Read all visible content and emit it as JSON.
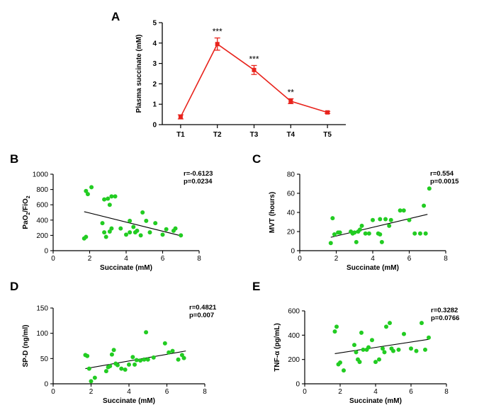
{
  "figure": {
    "background": "#ffffff"
  },
  "chart_data": [
    {
      "id": "A",
      "panel_label": "A",
      "type": "line",
      "color": "#e8231c",
      "categories": [
        "T1",
        "T2",
        "T3",
        "T4",
        "T5"
      ],
      "values": [
        0.38,
        3.95,
        2.68,
        1.15,
        0.6
      ],
      "errors": [
        0.1,
        0.3,
        0.22,
        0.12,
        0.05
      ],
      "significance": [
        "",
        "***",
        "***",
        "**",
        ""
      ],
      "ylabel": "Plasma succinate (mM)",
      "xlabel": "",
      "ylim": [
        0,
        5
      ],
      "yticks": [
        0,
        1,
        2,
        3,
        4,
        5
      ]
    },
    {
      "id": "B",
      "panel_label": "B",
      "type": "scatter",
      "color": "#22cc22",
      "xlabel": "Succinate (mM)",
      "ylabel": "PaO2/FiO2",
      "ylabel_main": "PaO",
      "ylabel_sub1": "2",
      "ylabel_mid": "/FiO",
      "ylabel_sub2": "2",
      "xlim": [
        0,
        8
      ],
      "ylim": [
        0,
        1000
      ],
      "xticks": [
        0,
        2,
        4,
        6,
        8
      ],
      "yticks": [
        0,
        200,
        400,
        600,
        800,
        1000
      ],
      "r_text": "r=-0.6123",
      "p_text": "p=0.0234",
      "regression": {
        "x": [
          1.7,
          7.0
        ],
        "y": [
          510,
          195
        ]
      },
      "points": [
        [
          1.7,
          160
        ],
        [
          1.8,
          180
        ],
        [
          1.8,
          780
        ],
        [
          1.9,
          740
        ],
        [
          2.1,
          830
        ],
        [
          2.7,
          360
        ],
        [
          2.8,
          240
        ],
        [
          2.8,
          670
        ],
        [
          2.9,
          180
        ],
        [
          3.0,
          680
        ],
        [
          3.1,
          250
        ],
        [
          3.2,
          290
        ],
        [
          3.1,
          600
        ],
        [
          3.2,
          710
        ],
        [
          3.4,
          710
        ],
        [
          3.7,
          290
        ],
        [
          4.0,
          210
        ],
        [
          4.2,
          390
        ],
        [
          4.4,
          310
        ],
        [
          4.2,
          240
        ],
        [
          4.5,
          240
        ],
        [
          4.6,
          260
        ],
        [
          4.8,
          200
        ],
        [
          4.9,
          500
        ],
        [
          5.1,
          390
        ],
        [
          5.3,
          240
        ],
        [
          5.6,
          360
        ],
        [
          6.0,
          210
        ],
        [
          6.2,
          280
        ],
        [
          6.6,
          260
        ],
        [
          6.7,
          290
        ],
        [
          7.0,
          200
        ]
      ]
    },
    {
      "id": "C",
      "panel_label": "C",
      "type": "scatter",
      "color": "#22cc22",
      "xlabel": "Succinate (mM)",
      "ylabel": "MVT (hours)",
      "xlim": [
        0,
        8
      ],
      "ylim": [
        0,
        80
      ],
      "xticks": [
        0,
        2,
        4,
        6,
        8
      ],
      "yticks": [
        0,
        20,
        40,
        60,
        80
      ],
      "r_text": "r=0.554",
      "p_text": "p=0.0015",
      "regression": {
        "x": [
          1.7,
          7.0
        ],
        "y": [
          14,
          38
        ]
      },
      "points": [
        [
          1.7,
          8
        ],
        [
          1.8,
          34
        ],
        [
          1.9,
          17
        ],
        [
          2.1,
          19
        ],
        [
          2.2,
          19
        ],
        [
          2.8,
          20
        ],
        [
          2.9,
          18
        ],
        [
          3.0,
          19
        ],
        [
          3.1,
          9
        ],
        [
          3.2,
          20
        ],
        [
          3.3,
          22
        ],
        [
          3.4,
          26
        ],
        [
          3.6,
          18
        ],
        [
          3.8,
          18
        ],
        [
          4.0,
          32
        ],
        [
          4.3,
          18
        ],
        [
          4.4,
          17
        ],
        [
          4.4,
          33
        ],
        [
          4.5,
          9
        ],
        [
          4.7,
          33
        ],
        [
          4.9,
          26
        ],
        [
          5.0,
          32
        ],
        [
          5.5,
          42
        ],
        [
          5.7,
          42
        ],
        [
          6.0,
          32
        ],
        [
          6.3,
          18
        ],
        [
          6.6,
          18
        ],
        [
          6.8,
          47
        ],
        [
          6.9,
          18
        ],
        [
          7.1,
          65
        ]
      ]
    },
    {
      "id": "D",
      "panel_label": "D",
      "type": "scatter",
      "color": "#22cc22",
      "xlabel": "Succinate (mM)",
      "ylabel": "SP-D (ng/ml)",
      "xlim": [
        0,
        8
      ],
      "ylim": [
        0,
        150
      ],
      "xticks": [
        0,
        2,
        4,
        6,
        8
      ],
      "yticks": [
        0,
        50,
        100,
        150
      ],
      "r_text": "r=0.4821",
      "p_text": "p=0.007",
      "regression": {
        "x": [
          1.7,
          7.0
        ],
        "y": [
          30,
          65
        ]
      },
      "points": [
        [
          1.7,
          57
        ],
        [
          1.8,
          55
        ],
        [
          1.9,
          30
        ],
        [
          2.0,
          5
        ],
        [
          2.2,
          12
        ],
        [
          2.8,
          25
        ],
        [
          2.9,
          33
        ],
        [
          3.0,
          35
        ],
        [
          3.1,
          58
        ],
        [
          3.2,
          67
        ],
        [
          3.3,
          40
        ],
        [
          3.4,
          37
        ],
        [
          3.6,
          30
        ],
        [
          3.8,
          28
        ],
        [
          4.0,
          38
        ],
        [
          4.2,
          53
        ],
        [
          4.3,
          38
        ],
        [
          4.4,
          47
        ],
        [
          4.6,
          46
        ],
        [
          4.8,
          48
        ],
        [
          4.9,
          102
        ],
        [
          5.0,
          48
        ],
        [
          5.3,
          52
        ],
        [
          5.9,
          80
        ],
        [
          6.1,
          62
        ],
        [
          6.3,
          65
        ],
        [
          6.6,
          48
        ],
        [
          6.8,
          57
        ],
        [
          6.9,
          51
        ]
      ]
    },
    {
      "id": "E",
      "panel_label": "E",
      "type": "scatter",
      "color": "#22cc22",
      "xlabel": "Succinate (mM)",
      "ylabel": "TNF-α (pg/mL)",
      "xlim": [
        0,
        8
      ],
      "ylim": [
        0,
        600
      ],
      "xticks": [
        0,
        2,
        4,
        6,
        8
      ],
      "yticks": [
        0,
        200,
        400,
        600
      ],
      "r_text": "r=0.3282",
      "p_text": "p=0.0766",
      "regression": {
        "x": [
          1.7,
          7.0
        ],
        "y": [
          248,
          366
        ]
      },
      "points": [
        [
          1.7,
          430
        ],
        [
          1.8,
          470
        ],
        [
          1.9,
          160
        ],
        [
          2.0,
          175
        ],
        [
          2.2,
          110
        ],
        [
          2.8,
          320
        ],
        [
          2.9,
          260
        ],
        [
          3.0,
          200
        ],
        [
          3.1,
          180
        ],
        [
          3.2,
          420
        ],
        [
          3.3,
          280
        ],
        [
          3.5,
          280
        ],
        [
          3.6,
          300
        ],
        [
          3.8,
          360
        ],
        [
          4.0,
          180
        ],
        [
          4.2,
          200
        ],
        [
          4.4,
          290
        ],
        [
          4.5,
          260
        ],
        [
          4.6,
          470
        ],
        [
          4.8,
          500
        ],
        [
          4.9,
          290
        ],
        [
          5.0,
          270
        ],
        [
          5.3,
          280
        ],
        [
          5.6,
          410
        ],
        [
          6.0,
          290
        ],
        [
          6.3,
          270
        ],
        [
          6.6,
          500
        ],
        [
          6.8,
          280
        ],
        [
          7.0,
          380
        ]
      ]
    }
  ]
}
